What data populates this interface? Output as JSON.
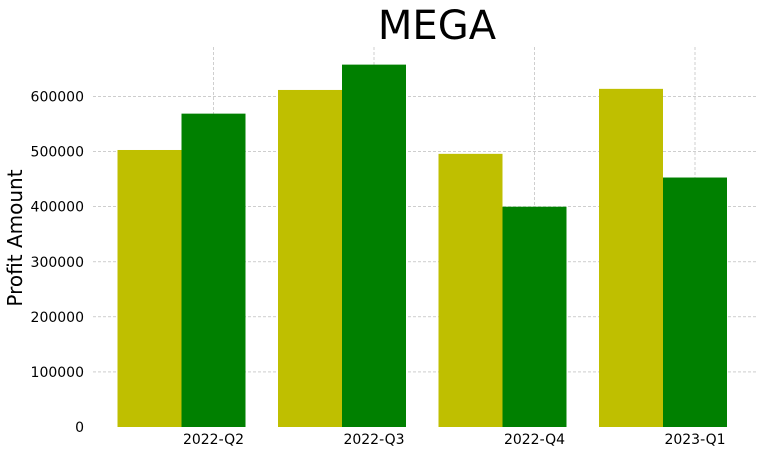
{
  "chart_data": {
    "type": "bar",
    "title": "MEGA",
    "xlabel": "",
    "ylabel": "Profit Amount",
    "categories": [
      "2022-Q2",
      "2022-Q3",
      "2022-Q4",
      "2023-Q1"
    ],
    "series": [
      {
        "color": "#bfbf00",
        "values": [
          503000,
          612000,
          496000,
          614000
        ]
      },
      {
        "color": "#008000",
        "values": [
          569000,
          658000,
          400000,
          453000
        ]
      }
    ],
    "ylim": [
      0,
      690000
    ],
    "yticks": [
      0,
      100000,
      200000,
      300000,
      400000,
      500000,
      600000
    ],
    "ytick_labels": [
      "0",
      "100000",
      "200000",
      "300000",
      "400000",
      "500000",
      "600000"
    ],
    "grid": true,
    "legend": "none"
  }
}
